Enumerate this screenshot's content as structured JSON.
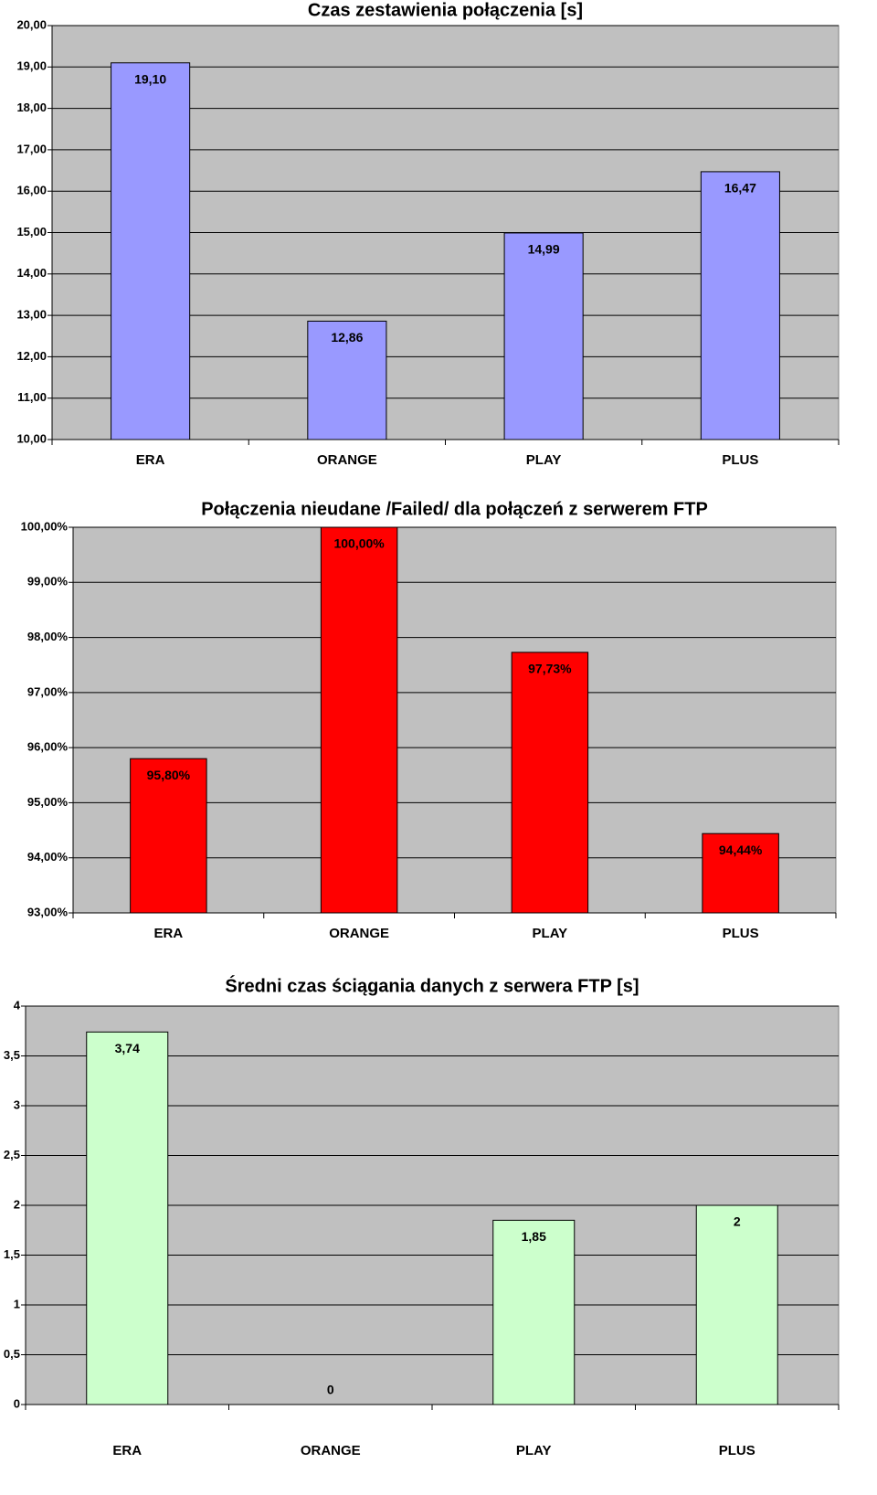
{
  "chart_data": [
    {
      "type": "bar",
      "title": "Czas zestawienia połączenia [s]",
      "categories": [
        "ERA",
        "ORANGE",
        "PLAY",
        "PLUS"
      ],
      "values": [
        19.1,
        12.86,
        14.99,
        16.47
      ],
      "value_labels": [
        "19,10",
        "12,86",
        "14,99",
        "16,47"
      ],
      "color": "#9999ff",
      "ylim": [
        10,
        20
      ],
      "yticks": [
        {
          "value": 10,
          "label": "10,00"
        },
        {
          "value": 11,
          "label": "11,00"
        },
        {
          "value": 12,
          "label": "12,00"
        },
        {
          "value": 13,
          "label": "13,00"
        },
        {
          "value": 14,
          "label": "14,00"
        },
        {
          "value": 15,
          "label": "15,00"
        },
        {
          "value": 16,
          "label": "16,00"
        },
        {
          "value": 17,
          "label": "17,00"
        },
        {
          "value": 18,
          "label": "18,00"
        },
        {
          "value": 19,
          "label": "19,00"
        },
        {
          "value": 20,
          "label": "20,00"
        }
      ],
      "grid": true
    },
    {
      "type": "bar",
      "title": "Połączenia nieudane /Failed/ dla połączeń z serwerem FTP",
      "categories": [
        "ERA",
        "ORANGE",
        "PLAY",
        "PLUS"
      ],
      "values": [
        95.8,
        100,
        97.73,
        94.44
      ],
      "value_labels": [
        "95,80%",
        "100,00%",
        "97,73%",
        "94,44%"
      ],
      "color": "#ff0000",
      "ylim": [
        93,
        100
      ],
      "yticks": [
        {
          "value": 93,
          "label": "93,00%"
        },
        {
          "value": 94,
          "label": "94,00%"
        },
        {
          "value": 95,
          "label": "95,00%"
        },
        {
          "value": 96,
          "label": "96,00%"
        },
        {
          "value": 97,
          "label": "97,00%"
        },
        {
          "value": 98,
          "label": "98,00%"
        },
        {
          "value": 99,
          "label": "99,00%"
        },
        {
          "value": 100,
          "label": "100,00%"
        }
      ],
      "grid": true
    },
    {
      "type": "bar",
      "title": "Średni czas ściągania danych z serwera FTP [s]",
      "categories": [
        "ERA",
        "ORANGE",
        "PLAY",
        "PLUS"
      ],
      "values": [
        3.74,
        0,
        1.85,
        2
      ],
      "value_labels": [
        "3,74",
        "0",
        "1,85",
        "2"
      ],
      "color": "#ccffcc",
      "ylim": [
        0,
        4
      ],
      "yticks": [
        0,
        {
          "value": 0.5,
          "label": "0,5"
        },
        1,
        {
          "value": 1.5,
          "label": "1,5"
        },
        2,
        {
          "value": 2.5,
          "label": "2,5"
        },
        3,
        {
          "value": 3.5,
          "label": "3,5"
        },
        4
      ],
      "grid": true
    }
  ]
}
